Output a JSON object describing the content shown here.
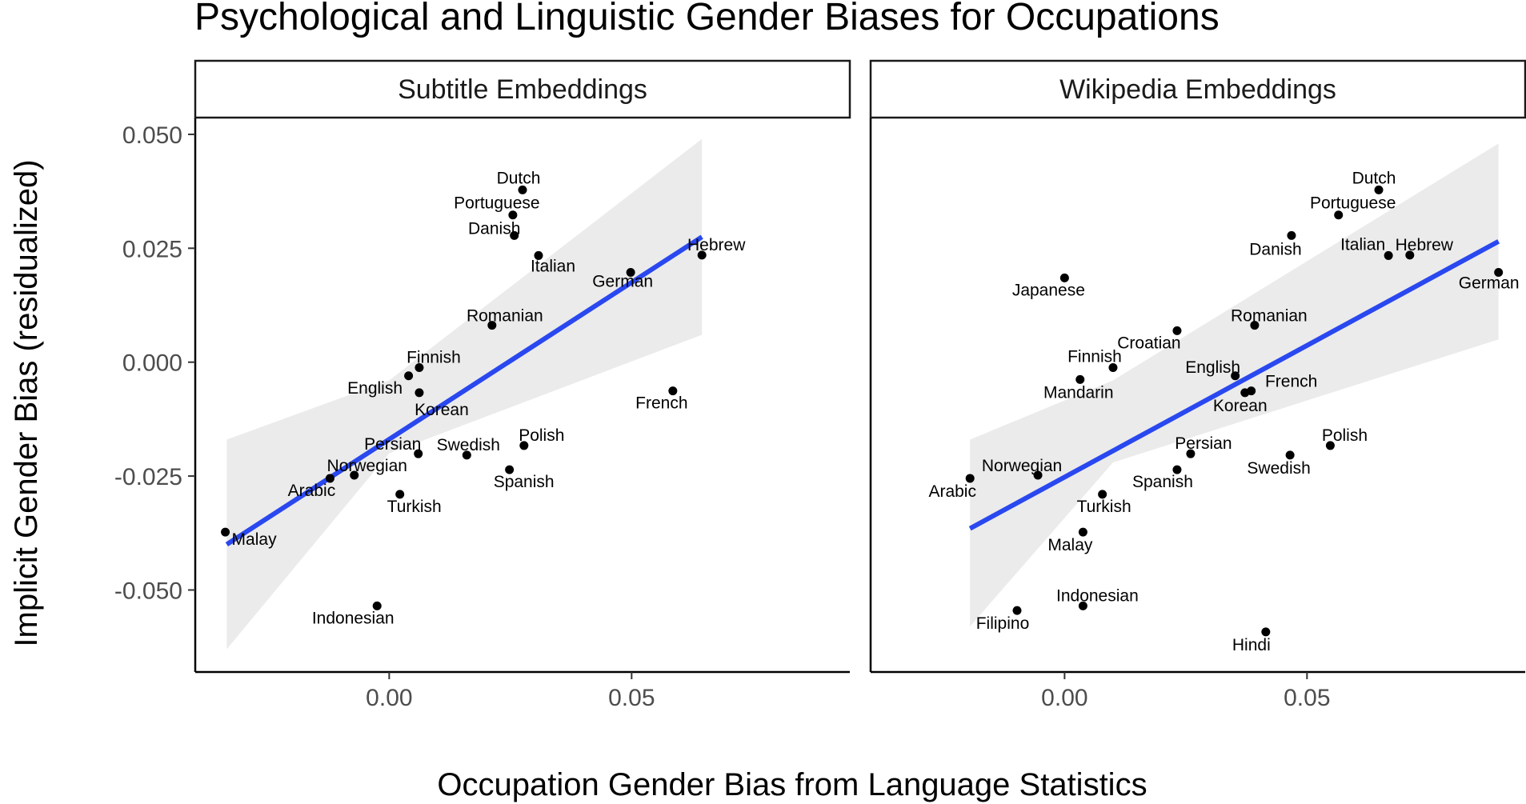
{
  "chart_data": {
    "type": "scatter",
    "title": "Psychological and Linguistic Gender Biases for Occupations",
    "xlabel": "Occupation Gender Bias from Language Statistics",
    "ylabel": "Implicit Gender Bias (residualized)",
    "xlim": [
      -0.04,
      0.095
    ],
    "ylim": [
      -0.068,
      0.0535
    ],
    "x_ticks": [
      0.0,
      0.05
    ],
    "x_tick_labels": [
      "0.00",
      "0.05"
    ],
    "y_ticks": [
      -0.05,
      -0.025,
      0.0,
      0.025,
      0.05
    ],
    "y_tick_labels": [
      "-0.050",
      "-0.025",
      "0.000",
      "0.025",
      "0.050"
    ],
    "grid": false,
    "colors": {
      "points": "#000000",
      "fit_line": "#2a48ef",
      "ci_band": "#ebebeb"
    },
    "panels": [
      {
        "strip": "Subtitle Embeddings",
        "fit": {
          "x": [
            -0.0335,
            0.0645
          ],
          "y": [
            -0.04,
            0.0275
          ]
        },
        "ci": {
          "x": [
            -0.0335,
            0.0,
            0.0645
          ],
          "upper": [
            -0.017,
            -0.004,
            0.049
          ],
          "lower": [
            -0.063,
            -0.02,
            0.006
          ]
        },
        "points": [
          {
            "label": "Dutch",
            "x": 0.0275,
            "y": 0.0378
          },
          {
            "label": "Portuguese",
            "x": 0.0255,
            "y": 0.0323
          },
          {
            "label": "Danish",
            "x": 0.0258,
            "y": 0.0278
          },
          {
            "label": "Italian",
            "x": 0.0308,
            "y": 0.0234
          },
          {
            "label": "Hebrew",
            "x": 0.0645,
            "y": 0.0235
          },
          {
            "label": "German",
            "x": 0.0498,
            "y": 0.0197
          },
          {
            "label": "Romanian",
            "x": 0.0212,
            "y": 0.0081
          },
          {
            "label": "Finnish",
            "x": 0.0062,
            "y": -0.0012
          },
          {
            "label": "English",
            "x": 0.004,
            "y": -0.003
          },
          {
            "label": "Korean",
            "x": 0.0062,
            "y": -0.0067
          },
          {
            "label": "French",
            "x": 0.0585,
            "y": -0.0063
          },
          {
            "label": "Polish",
            "x": 0.0278,
            "y": -0.0183
          },
          {
            "label": "Swedish",
            "x": 0.016,
            "y": -0.0204
          },
          {
            "label": "Persian",
            "x": 0.006,
            "y": -0.0201
          },
          {
            "label": "Spanish",
            "x": 0.0248,
            "y": -0.0236
          },
          {
            "label": "Norwegian",
            "x": -0.0072,
            "y": -0.0248
          },
          {
            "label": "Arabic",
            "x": -0.0122,
            "y": -0.0255
          },
          {
            "label": "Turkish",
            "x": 0.0022,
            "y": -0.029
          },
          {
            "label": "Malay",
            "x": -0.0338,
            "y": -0.0373
          },
          {
            "label": "Indonesian",
            "x": -0.0025,
            "y": -0.0535
          }
        ]
      },
      {
        "strip": "Wikipedia Embeddings",
        "fit": {
          "x": [
            -0.0195,
            0.0895
          ],
          "y": [
            -0.0365,
            0.0265
          ]
        },
        "ci": {
          "x": [
            -0.0195,
            0.01,
            0.0895
          ],
          "upper": [
            -0.017,
            -0.004,
            0.048
          ],
          "lower": [
            -0.058,
            -0.022,
            0.005
          ]
        },
        "points": [
          {
            "label": "Dutch",
            "x": 0.0648,
            "y": 0.0378
          },
          {
            "label": "Portuguese",
            "x": 0.0565,
            "y": 0.0323
          },
          {
            "label": "Danish",
            "x": 0.0468,
            "y": 0.0278
          },
          {
            "label": "Hebrew",
            "x": 0.0712,
            "y": 0.0235
          },
          {
            "label": "Italian",
            "x": 0.0668,
            "y": 0.0234
          },
          {
            "label": "German",
            "x": 0.0895,
            "y": 0.0197
          },
          {
            "label": "Japanese",
            "x": 0.0,
            "y": 0.0185
          },
          {
            "label": "Romanian",
            "x": 0.0392,
            "y": 0.0081
          },
          {
            "label": "Croatian",
            "x": 0.0232,
            "y": 0.0069
          },
          {
            "label": "Finnish",
            "x": 0.01,
            "y": -0.0012
          },
          {
            "label": "English",
            "x": 0.0352,
            "y": -0.003
          },
          {
            "label": "Mandarin",
            "x": 0.0032,
            "y": -0.0038
          },
          {
            "label": "French",
            "x": 0.0385,
            "y": -0.0063
          },
          {
            "label": "Korean",
            "x": 0.0372,
            "y": -0.0067
          },
          {
            "label": "Polish",
            "x": 0.0548,
            "y": -0.0183
          },
          {
            "label": "Persian",
            "x": 0.026,
            "y": -0.0201
          },
          {
            "label": "Swedish",
            "x": 0.0465,
            "y": -0.0204
          },
          {
            "label": "Spanish",
            "x": 0.0232,
            "y": -0.0236
          },
          {
            "label": "Norwegian",
            "x": -0.0055,
            "y": -0.0248
          },
          {
            "label": "Arabic",
            "x": -0.0195,
            "y": -0.0255
          },
          {
            "label": "Turkish",
            "x": 0.0078,
            "y": -0.029
          },
          {
            "label": "Malay",
            "x": 0.0038,
            "y": -0.0373
          },
          {
            "label": "Indonesian",
            "x": 0.0038,
            "y": -0.0535
          },
          {
            "label": "Filipino",
            "x": -0.0098,
            "y": -0.0545
          },
          {
            "label": "Hindi",
            "x": 0.0415,
            "y": -0.0592
          }
        ]
      }
    ]
  }
}
